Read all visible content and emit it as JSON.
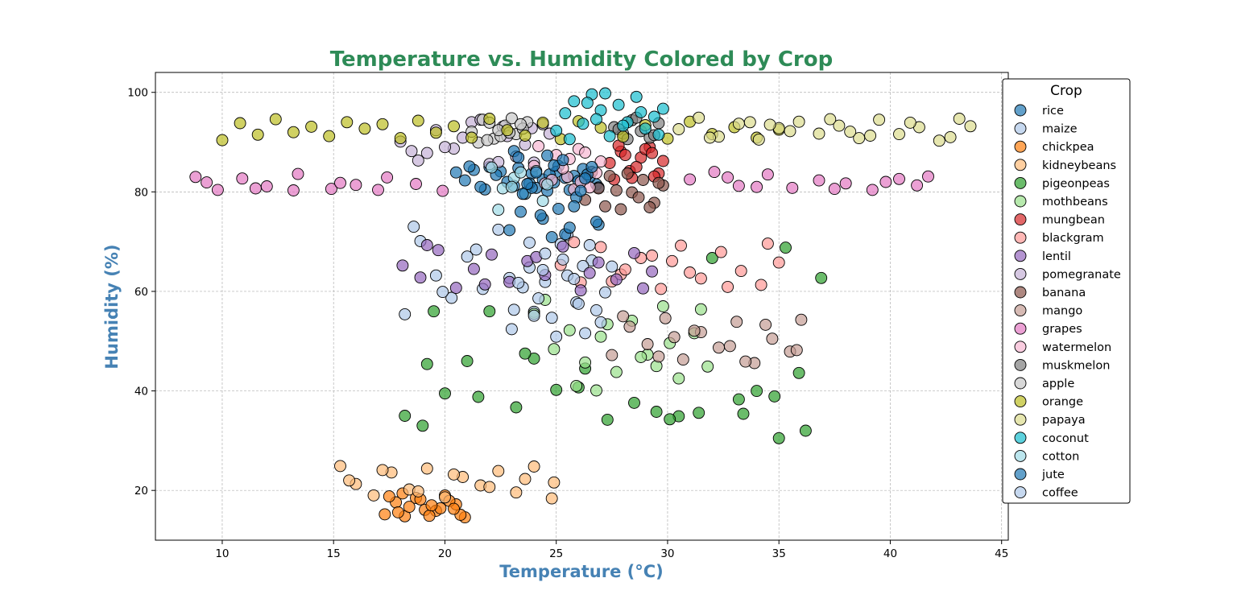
{
  "chart_data": {
    "type": "scatter",
    "title": "Temperature vs. Humidity Colored by Crop",
    "xlabel": "Temperature (°C)",
    "ylabel": "Humidity (%)",
    "xlim": [
      7,
      45.3
    ],
    "ylim": [
      10,
      104
    ],
    "xticks": [
      10,
      15,
      20,
      25,
      30,
      35,
      40,
      45
    ],
    "yticks": [
      20,
      40,
      60,
      80,
      100
    ],
    "grid": true,
    "legend_title": "Crop",
    "legend_position": "right, outside plot",
    "colors": {
      "title": "#2e8b57",
      "axis_label": "#4682b4",
      "grid": "#b0b0b0",
      "marker_edge": "#000000"
    },
    "series": [
      {
        "name": "rice",
        "color": "#1f77b4",
        "x": [
          20.9,
          21.8,
          22.5,
          23.1,
          23.9,
          24.6,
          25.4,
          26.2,
          26.8,
          20.5,
          22.0,
          23.6,
          24.9,
          25.8,
          21.3,
          22.8,
          24.1,
          25.1,
          26.5,
          21.6,
          23.3,
          24.4,
          25.6,
          22.3,
          23.8,
          25.0,
          26.0,
          26.9,
          21.1,
          24.7
        ],
        "y": [
          82.3,
          80.5,
          84.1,
          81.2,
          83.7,
          80.2,
          82.8,
          84.6,
          81.5,
          83.9,
          85.0,
          79.8,
          81.9,
          83.2,
          84.4,
          82.0,
          80.8,
          85.2,
          83.0,
          81.0,
          84.8,
          82.5,
          80.4,
          83.4,
          81.7,
          84.0,
          82.2,
          80.9,
          85.1,
          83.5
        ]
      },
      {
        "name": "maize",
        "color": "#aec7e8",
        "x": [
          18.2,
          18.9,
          19.6,
          20.3,
          21.0,
          21.7,
          22.4,
          23.1,
          23.8,
          24.5,
          25.2,
          25.9,
          26.6,
          18.6,
          19.9,
          21.4,
          22.9,
          24.0,
          25.5,
          26.2
        ],
        "y": [
          55.4,
          70.1,
          63.2,
          58.7,
          67.0,
          60.5,
          72.4,
          56.3,
          64.8,
          61.9,
          69.5,
          57.8,
          66.2,
          73.0,
          59.9,
          68.4,
          62.7,
          55.9,
          71.3,
          65.1
        ]
      },
      {
        "name": "chickpea",
        "color": "#ff7f0e",
        "x": [
          17.3,
          17.8,
          18.2,
          18.7,
          19.1,
          19.6,
          20.0,
          20.5,
          20.9,
          17.5,
          18.4,
          19.3,
          20.2,
          17.9,
          18.9,
          19.8,
          20.7,
          18.1,
          19.4,
          20.4
        ],
        "y": [
          15.2,
          17.6,
          14.8,
          18.5,
          16.1,
          15.9,
          19.0,
          17.2,
          14.6,
          18.8,
          16.7,
          14.9,
          17.9,
          15.6,
          18.2,
          16.4,
          15.1,
          19.4,
          17.0,
          16.3
        ]
      },
      {
        "name": "kidneybeans",
        "color": "#ffbb78",
        "x": [
          15.3,
          16.0,
          16.8,
          17.6,
          18.4,
          19.2,
          20.0,
          20.8,
          21.6,
          22.4,
          23.2,
          24.0,
          24.8,
          15.7,
          17.2,
          18.8,
          20.4,
          22.0,
          23.6,
          24.9
        ],
        "y": [
          24.9,
          21.3,
          19.0,
          23.6,
          20.2,
          24.4,
          18.6,
          22.7,
          21.0,
          23.9,
          19.6,
          24.8,
          18.4,
          22.0,
          24.1,
          19.8,
          23.2,
          20.7,
          22.3,
          21.6
        ]
      },
      {
        "name": "pigeonpeas",
        "color": "#2ca02c",
        "x": [
          18.2,
          19.0,
          19.5,
          20.0,
          21.0,
          21.5,
          22.0,
          23.2,
          24.0,
          25.0,
          26.0,
          27.3,
          28.5,
          29.5,
          30.5,
          31.4,
          32.0,
          33.2,
          34.0,
          34.8,
          35.3,
          35.9,
          36.2,
          36.9,
          19.2,
          30.1,
          33.4,
          35.0,
          26.3,
          23.6
        ],
        "y": [
          35.0,
          33.0,
          56.0,
          39.5,
          46.0,
          38.8,
          56.0,
          36.7,
          46.5,
          40.2,
          40.7,
          34.2,
          37.6,
          35.8,
          34.9,
          35.6,
          66.7,
          38.3,
          40.0,
          38.9,
          68.8,
          43.6,
          32.0,
          62.7,
          45.4,
          34.3,
          35.4,
          30.5,
          44.5,
          47.5
        ]
      },
      {
        "name": "mothbeans",
        "color": "#98df8a",
        "x": [
          24.0,
          24.9,
          25.6,
          26.3,
          27.0,
          27.7,
          28.4,
          29.1,
          29.8,
          30.5,
          31.2,
          31.8,
          24.5,
          25.9,
          27.3,
          28.8,
          30.1,
          31.5,
          26.8,
          29.5
        ],
        "y": [
          55.5,
          48.4,
          52.2,
          45.7,
          50.9,
          43.8,
          54.1,
          47.3,
          57.0,
          42.5,
          51.6,
          44.9,
          58.3,
          41.0,
          53.4,
          46.8,
          49.6,
          56.4,
          40.1,
          45.0
        ]
      },
      {
        "name": "mungbean",
        "color": "#d62728",
        "x": [
          27.4,
          27.9,
          28.3,
          28.8,
          29.2,
          29.6,
          27.6,
          28.1,
          28.6,
          29.0,
          29.4,
          29.8,
          27.8,
          28.4,
          29.3
        ],
        "y": [
          85.8,
          88.1,
          84.2,
          86.9,
          89.0,
          83.7,
          82.5,
          87.4,
          85.0,
          88.6,
          83.1,
          86.2,
          89.3,
          82.8,
          87.8
        ]
      },
      {
        "name": "blackgram",
        "color": "#ff9896",
        "x": [
          25.2,
          26.1,
          27.0,
          27.9,
          28.8,
          29.7,
          30.6,
          31.5,
          32.4,
          33.3,
          34.2,
          35.0,
          25.8,
          27.5,
          29.3,
          31.0,
          32.7,
          34.5,
          28.1,
          30.2
        ],
        "y": [
          65.3,
          61.8,
          68.9,
          63.4,
          66.7,
          60.5,
          69.2,
          62.6,
          67.9,
          64.1,
          61.3,
          65.8,
          69.9,
          62.0,
          67.2,
          63.8,
          60.9,
          69.6,
          64.4,
          66.1
        ]
      },
      {
        "name": "lentil",
        "color": "#9467bd",
        "x": [
          18.1,
          18.9,
          19.7,
          20.5,
          21.3,
          22.1,
          22.9,
          23.7,
          24.5,
          25.3,
          26.1,
          26.9,
          27.7,
          28.5,
          29.3,
          19.2,
          21.8,
          24.1,
          26.5,
          28.9
        ],
        "y": [
          65.2,
          62.8,
          68.3,
          60.7,
          64.5,
          67.4,
          61.9,
          66.1,
          63.3,
          69.0,
          60.2,
          65.8,
          62.4,
          67.7,
          64.0,
          69.3,
          61.4,
          66.9,
          63.7,
          60.6
        ]
      },
      {
        "name": "pomegranate",
        "color": "#c5b0d5",
        "x": [
          18.0,
          18.8,
          19.6,
          20.4,
          21.2,
          22.0,
          22.8,
          23.6,
          24.4,
          19.2,
          20.8,
          22.4,
          23.9,
          18.5,
          21.6,
          23.2,
          24.7,
          20.0,
          22.6,
          24.0
        ],
        "y": [
          90.1,
          86.3,
          92.4,
          88.7,
          94.0,
          85.6,
          91.2,
          89.5,
          93.6,
          87.8,
          90.9,
          86.0,
          92.8,
          88.2,
          94.5,
          87.1,
          91.7,
          89.0,
          93.1,
          85.9
        ]
      },
      {
        "name": "banana",
        "color": "#8c564b",
        "x": [
          26.3,
          26.9,
          27.4,
          27.9,
          28.4,
          28.9,
          29.4,
          29.8,
          26.6,
          27.2,
          27.7,
          28.2,
          28.7,
          29.2,
          29.6
        ],
        "y": [
          78.4,
          80.7,
          83.2,
          76.5,
          79.9,
          82.4,
          77.8,
          81.3,
          84.0,
          77.1,
          80.3,
          83.7,
          78.9,
          76.9,
          81.8
        ]
      },
      {
        "name": "mango",
        "color": "#c49c94",
        "x": [
          27.5,
          28.3,
          29.1,
          29.9,
          30.7,
          31.5,
          32.3,
          33.1,
          33.9,
          34.7,
          35.5,
          36.0,
          28.0,
          29.6,
          31.2,
          32.8,
          34.4,
          35.8,
          30.3,
          33.5
        ],
        "y": [
          47.2,
          52.9,
          49.4,
          54.6,
          46.3,
          51.8,
          48.7,
          53.9,
          45.6,
          50.5,
          47.9,
          54.3,
          55.0,
          46.9,
          52.1,
          49.0,
          53.3,
          48.2,
          50.8,
          45.9
        ]
      },
      {
        "name": "grapes",
        "color": "#e377c2",
        "x": [
          8.8,
          9.8,
          10.9,
          12.0,
          13.2,
          14.9,
          16.0,
          17.4,
          18.7,
          19.9,
          31.0,
          32.1,
          33.2,
          34.5,
          35.6,
          36.8,
          38.0,
          39.2,
          40.4,
          41.7,
          9.3,
          11.5,
          13.4,
          15.3,
          17.0,
          32.7,
          34.0,
          37.5,
          39.8,
          41.2
        ],
        "y": [
          83.0,
          80.4,
          82.7,
          81.1,
          80.3,
          80.6,
          81.4,
          82.9,
          81.6,
          80.2,
          82.5,
          84.0,
          81.2,
          83.5,
          80.8,
          82.3,
          81.7,
          80.4,
          82.6,
          83.1,
          81.9,
          80.7,
          83.6,
          81.8,
          80.4,
          82.9,
          81.0,
          80.6,
          82.0,
          81.3
        ]
      },
      {
        "name": "watermelon",
        "color": "#f7b6d2",
        "x": [
          24.0,
          24.5,
          25.0,
          25.5,
          26.0,
          26.5,
          27.0,
          24.2,
          24.8,
          25.3,
          25.8,
          26.3,
          26.8,
          25.6,
          26.1
        ],
        "y": [
          85.2,
          81.7,
          87.4,
          83.0,
          88.6,
          80.9,
          86.1,
          89.2,
          82.4,
          84.7,
          80.5,
          87.9,
          83.8,
          86.6,
          82.0
        ]
      },
      {
        "name": "muskmelon",
        "color": "#7f7f7f",
        "x": [
          27.6,
          28.0,
          28.4,
          28.8,
          29.2,
          29.6,
          27.8,
          28.6,
          29.4,
          28.2
        ],
        "y": [
          93.0,
          91.7,
          94.4,
          92.2,
          90.9,
          93.8,
          92.6,
          94.9,
          91.4,
          90.6
        ]
      },
      {
        "name": "apple",
        "color": "#c7c7c7",
        "x": [
          21.2,
          21.7,
          22.2,
          22.7,
          23.2,
          23.7,
          21.5,
          22.0,
          22.5,
          23.0,
          23.5,
          21.9,
          22.9,
          23.4,
          22.4
        ],
        "y": [
          92.1,
          94.5,
          90.7,
          93.3,
          91.6,
          94.0,
          89.9,
          93.9,
          91.2,
          94.8,
          92.7,
          90.4,
          91.9,
          93.6,
          92.4
        ]
      },
      {
        "name": "orange",
        "color": "#bcbd22",
        "x": [
          10.0,
          10.8,
          11.6,
          12.4,
          13.2,
          14.0,
          14.8,
          15.6,
          16.4,
          17.2,
          18.0,
          18.8,
          19.6,
          20.4,
          21.2,
          22.0,
          22.8,
          23.6,
          24.4,
          25.2,
          26.0,
          27.0,
          28.0,
          29.0,
          30.0,
          31.0,
          32.0,
          33.0,
          34.0,
          35.0
        ],
        "y": [
          90.4,
          93.8,
          91.5,
          94.6,
          92.0,
          93.1,
          91.2,
          94.0,
          92.7,
          93.6,
          90.8,
          94.3,
          91.9,
          93.2,
          90.9,
          94.7,
          92.4,
          91.3,
          93.9,
          90.6,
          94.2,
          92.9,
          91.1,
          93.4,
          90.7,
          94.1,
          91.6,
          93.0,
          90.9,
          92.5
        ]
      },
      {
        "name": "papaya",
        "color": "#dbdb8d",
        "x": [
          30.5,
          31.4,
          32.3,
          33.2,
          34.1,
          35.0,
          35.9,
          36.8,
          37.7,
          38.6,
          39.5,
          40.4,
          41.3,
          42.2,
          43.1,
          43.6,
          31.9,
          33.7,
          35.5,
          37.3,
          39.1,
          40.9,
          42.7,
          34.6,
          38.2
        ],
        "y": [
          92.6,
          94.9,
          91.1,
          93.7,
          90.5,
          92.8,
          94.1,
          91.7,
          93.3,
          90.8,
          94.5,
          91.6,
          93.0,
          90.3,
          94.7,
          93.2,
          90.9,
          94.0,
          92.2,
          94.6,
          91.3,
          93.9,
          91.0,
          93.5,
          92.1
        ]
      },
      {
        "name": "coconut",
        "color": "#17becf",
        "x": [
          25.0,
          25.4,
          25.8,
          26.2,
          26.6,
          27.0,
          27.4,
          27.8,
          28.2,
          28.6,
          29.0,
          29.4,
          29.8,
          25.6,
          26.4,
          27.2,
          28.0,
          28.8,
          29.6,
          26.8
        ],
        "y": [
          92.3,
          95.8,
          98.2,
          93.7,
          99.6,
          96.4,
          91.2,
          97.5,
          94.0,
          99.1,
          92.7,
          95.1,
          96.7,
          90.6,
          97.9,
          99.8,
          93.3,
          96.0,
          91.5,
          94.6
        ]
      },
      {
        "name": "cotton",
        "color": "#9edae5",
        "x": [
          22.1,
          22.6,
          23.1,
          23.6,
          24.1,
          24.6,
          22.4,
          23.4,
          24.4,
          23.0
        ],
        "y": [
          84.9,
          80.7,
          82.8,
          79.6,
          84.2,
          81.5,
          76.4,
          83.9,
          78.2,
          81.0
        ]
      },
      {
        "name": "jute",
        "color": "#1f77b4",
        "x": [
          22.9,
          23.4,
          23.9,
          24.4,
          24.9,
          25.4,
          25.9,
          26.4,
          26.9,
          23.1,
          23.7,
          24.3,
          24.8,
          25.3,
          25.8,
          26.3,
          26.8,
          23.5,
          24.6,
          25.6,
          26.6,
          24.1,
          25.1,
          26.1,
          23.3
        ],
        "y": [
          72.3,
          76.0,
          80.8,
          74.6,
          85.3,
          71.5,
          78.9,
          83.5,
          73.4,
          88.2,
          81.6,
          75.3,
          70.9,
          86.4,
          77.1,
          82.7,
          74.0,
          79.6,
          87.3,
          72.8,
          85.0,
          83.9,
          76.6,
          80.2,
          86.9
        ]
      },
      {
        "name": "coffee",
        "color": "#aec7e8",
        "x": [
          23.0,
          23.5,
          24.0,
          24.5,
          25.0,
          25.5,
          26.0,
          26.5,
          27.0,
          27.5,
          23.3,
          24.2,
          25.3,
          26.3,
          27.2,
          23.8,
          24.8,
          25.8,
          26.8,
          24.4
        ],
        "y": [
          52.4,
          60.8,
          55.1,
          67.6,
          50.9,
          63.2,
          57.5,
          69.3,
          53.8,
          65.0,
          61.7,
          58.6,
          66.4,
          51.6,
          59.8,
          69.8,
          54.7,
          62.5,
          56.2,
          64.3
        ]
      }
    ]
  }
}
